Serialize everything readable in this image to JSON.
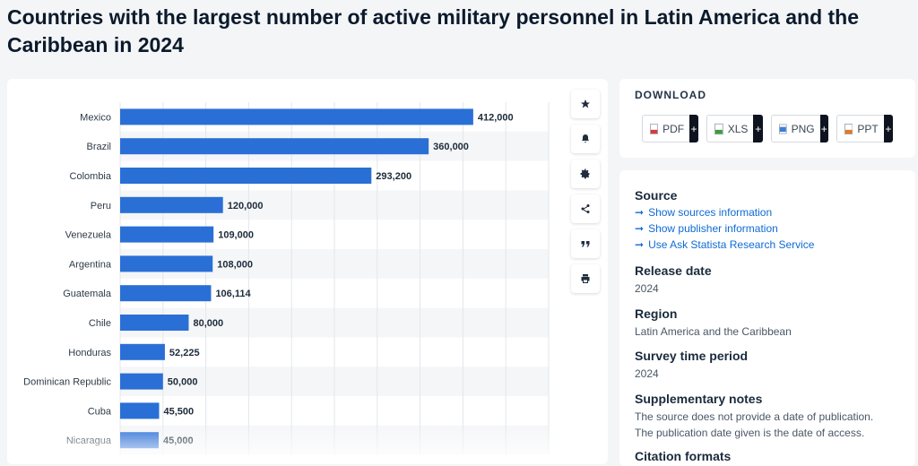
{
  "page_title": "Countries with the largest number of active military personnel in Latin America and the Caribbean in 2024",
  "colors": {
    "bar": "#2a6fd6",
    "stripe": "#f5f6f8",
    "grid": "#e3e6ea"
  },
  "toolbar": {
    "icons": [
      "star-icon",
      "bell-icon",
      "gear-icon",
      "share-icon",
      "quote-icon",
      "print-icon"
    ]
  },
  "download": {
    "title": "DOWNLOAD",
    "buttons": [
      {
        "label": "PDF",
        "plus": "+",
        "color": "#d63b3b"
      },
      {
        "label": "XLS",
        "plus": "+",
        "color": "#3a9d3a"
      },
      {
        "label": "PNG",
        "plus": "+",
        "color": "#3b7fd6"
      },
      {
        "label": "PPT",
        "plus": "+",
        "color": "#e07a2a"
      }
    ]
  },
  "info": {
    "source_heading": "Source",
    "links": [
      "Show sources information",
      "Show publisher information",
      "Use Ask Statista Research Service"
    ],
    "release_heading": "Release date",
    "release_value": "2024",
    "region_heading": "Region",
    "region_value": "Latin America and the Caribbean",
    "survey_heading": "Survey time period",
    "survey_value": "2024",
    "notes_heading": "Supplementary notes",
    "notes_line1": "The source does not provide a date of publication.",
    "notes_line2": "The publication date given is the date of access.",
    "citation_heading": "Citation formats"
  },
  "chart_data": {
    "type": "bar",
    "orientation": "horizontal",
    "categories": [
      "Mexico",
      "Brazil",
      "Colombia",
      "Peru",
      "Venezuela",
      "Argentina",
      "Guatemala",
      "Chile",
      "Honduras",
      "Dominican Republic",
      "Cuba",
      "Nicaragua"
    ],
    "values": [
      412000,
      360000,
      293200,
      120000,
      109000,
      108000,
      106114,
      80000,
      52225,
      50000,
      45500,
      45000
    ],
    "value_labels": [
      "412,000",
      "360,000",
      "293,200",
      "120,000",
      "109,000",
      "108,000",
      "106,114",
      "80,000",
      "52,225",
      "50,000",
      "45,500",
      "45,000"
    ],
    "xlim": [
      0,
      500000
    ],
    "grid": true,
    "title": "",
    "xlabel": "",
    "ylabel": ""
  }
}
